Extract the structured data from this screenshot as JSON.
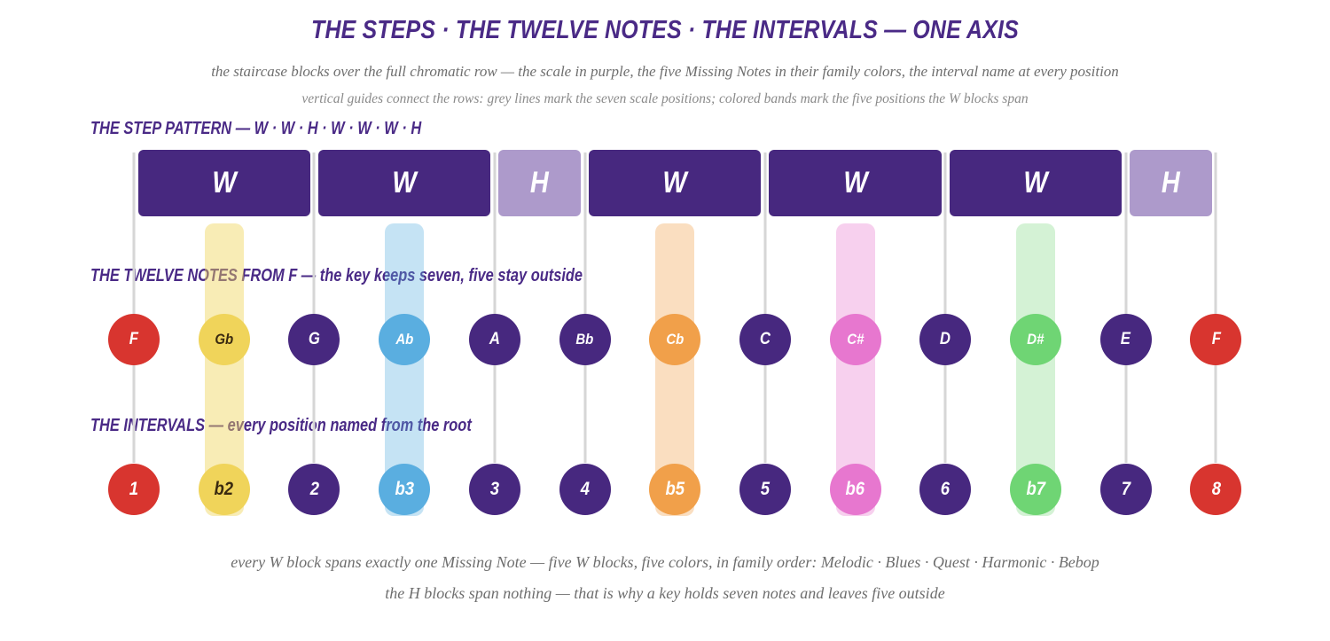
{
  "title": "THE STEPS · THE TWELVE NOTES · THE INTERVALS — ONE AXIS",
  "subtitle1": "the staircase blocks over the full chromatic row — the scale in purple, the five Missing Notes in their family colors, the interval name at every position",
  "subtitle2": "vertical guides connect the rows: grey lines mark the seven scale positions; colored bands mark the five positions the W blocks span",
  "footer1": "every W block spans exactly one Missing Note — five W blocks, five colors, in family order: Melodic · Blues · Quest · Harmonic · Bebop",
  "footer2": "the H blocks span nothing — that is why a key holds seven notes and leaves five outside",
  "labels": {
    "steps": "THE STEP PATTERN — W · W · H · W · W · W · H",
    "notes": "THE TWELVE NOTES FROM F — the key keeps seven, five stay outside",
    "intervals": "THE INTERVALS — every position named from the root"
  },
  "colors": {
    "root": "#d8352f",
    "scale": "#47287f",
    "half_step": "#ad9acb",
    "guide": "#d6d6d6",
    "melodic": "#f0d45a",
    "blues": "#5aaee0",
    "quest": "#f1a04a",
    "harmonic": "#e777cf",
    "bebop": "#6fd574"
  },
  "steps": [
    {
      "label": "W",
      "from": 0,
      "to": 2
    },
    {
      "label": "W",
      "from": 2,
      "to": 4
    },
    {
      "label": "H",
      "from": 4,
      "to": 5
    },
    {
      "label": "W",
      "from": 5,
      "to": 7
    },
    {
      "label": "W",
      "from": 7,
      "to": 9
    },
    {
      "label": "W",
      "from": 9,
      "to": 11
    },
    {
      "label": "H",
      "from": 11,
      "to": 12
    }
  ],
  "positions": [
    {
      "note": "F",
      "interval": "1",
      "kind": "root"
    },
    {
      "note": "Gb",
      "interval": "b2",
      "kind": "melodic"
    },
    {
      "note": "G",
      "interval": "2",
      "kind": "scale"
    },
    {
      "note": "Ab",
      "interval": "b3",
      "kind": "blues"
    },
    {
      "note": "A",
      "interval": "3",
      "kind": "scale"
    },
    {
      "note": "Bb",
      "interval": "4",
      "kind": "scale"
    },
    {
      "note": "Cb",
      "interval": "b5",
      "kind": "quest"
    },
    {
      "note": "C",
      "interval": "5",
      "kind": "scale"
    },
    {
      "note": "C#",
      "interval": "b6",
      "kind": "harmonic"
    },
    {
      "note": "D",
      "interval": "6",
      "kind": "scale"
    },
    {
      "note": "D#",
      "interval": "b7",
      "kind": "bebop"
    },
    {
      "note": "E",
      "interval": "7",
      "kind": "scale"
    },
    {
      "note": "F",
      "interval": "8",
      "kind": "root"
    }
  ]
}
